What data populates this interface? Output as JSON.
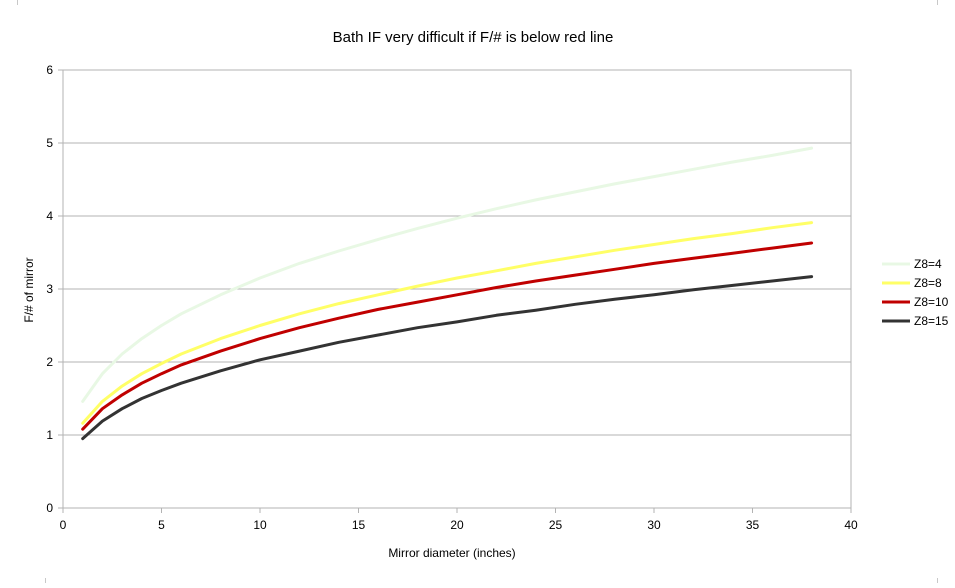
{
  "chart_data": {
    "type": "line",
    "title": "Bath IF very difficult if F/# is below red line",
    "xlabel": "Mirror diameter (inches)",
    "ylabel": "F/# of mirror",
    "xlim": [
      0,
      40
    ],
    "ylim": [
      0,
      6
    ],
    "x_ticks": [
      0,
      5,
      10,
      15,
      20,
      25,
      30,
      35,
      40
    ],
    "y_ticks": [
      0,
      1,
      2,
      3,
      4,
      5,
      6
    ],
    "grid": "horizontal",
    "legend_position": "right",
    "x": [
      1,
      2,
      3,
      4,
      5,
      6,
      8,
      10,
      12,
      14,
      16,
      18,
      20,
      22,
      24,
      26,
      28,
      30,
      32,
      34,
      36,
      38
    ],
    "series": [
      {
        "name": "Z8=4",
        "color": "#e8f8e4",
        "values": [
          1.46,
          1.84,
          2.11,
          2.32,
          2.5,
          2.66,
          2.92,
          3.15,
          3.35,
          3.52,
          3.68,
          3.83,
          3.97,
          4.1,
          4.22,
          4.33,
          4.44,
          4.54,
          4.64,
          4.74,
          4.83,
          4.93
        ]
      },
      {
        "name": "Z8=8",
        "color": "#ffff66",
        "values": [
          1.16,
          1.46,
          1.67,
          1.84,
          1.98,
          2.11,
          2.32,
          2.5,
          2.66,
          2.8,
          2.92,
          3.04,
          3.15,
          3.25,
          3.35,
          3.44,
          3.53,
          3.61,
          3.69,
          3.76,
          3.84,
          3.91
        ]
      },
      {
        "name": "Z8=10",
        "color": "#c00000",
        "values": [
          1.08,
          1.36,
          1.55,
          1.71,
          1.84,
          1.96,
          2.15,
          2.32,
          2.47,
          2.6,
          2.72,
          2.82,
          2.92,
          3.02,
          3.11,
          3.19,
          3.27,
          3.35,
          3.42,
          3.49,
          3.56,
          3.63
        ]
      },
      {
        "name": "Z8=15",
        "color": "#333333",
        "values": [
          0.95,
          1.19,
          1.36,
          1.5,
          1.61,
          1.71,
          1.88,
          2.03,
          2.15,
          2.27,
          2.37,
          2.47,
          2.55,
          2.64,
          2.71,
          2.79,
          2.86,
          2.92,
          2.99,
          3.05,
          3.11,
          3.17
        ]
      }
    ]
  }
}
